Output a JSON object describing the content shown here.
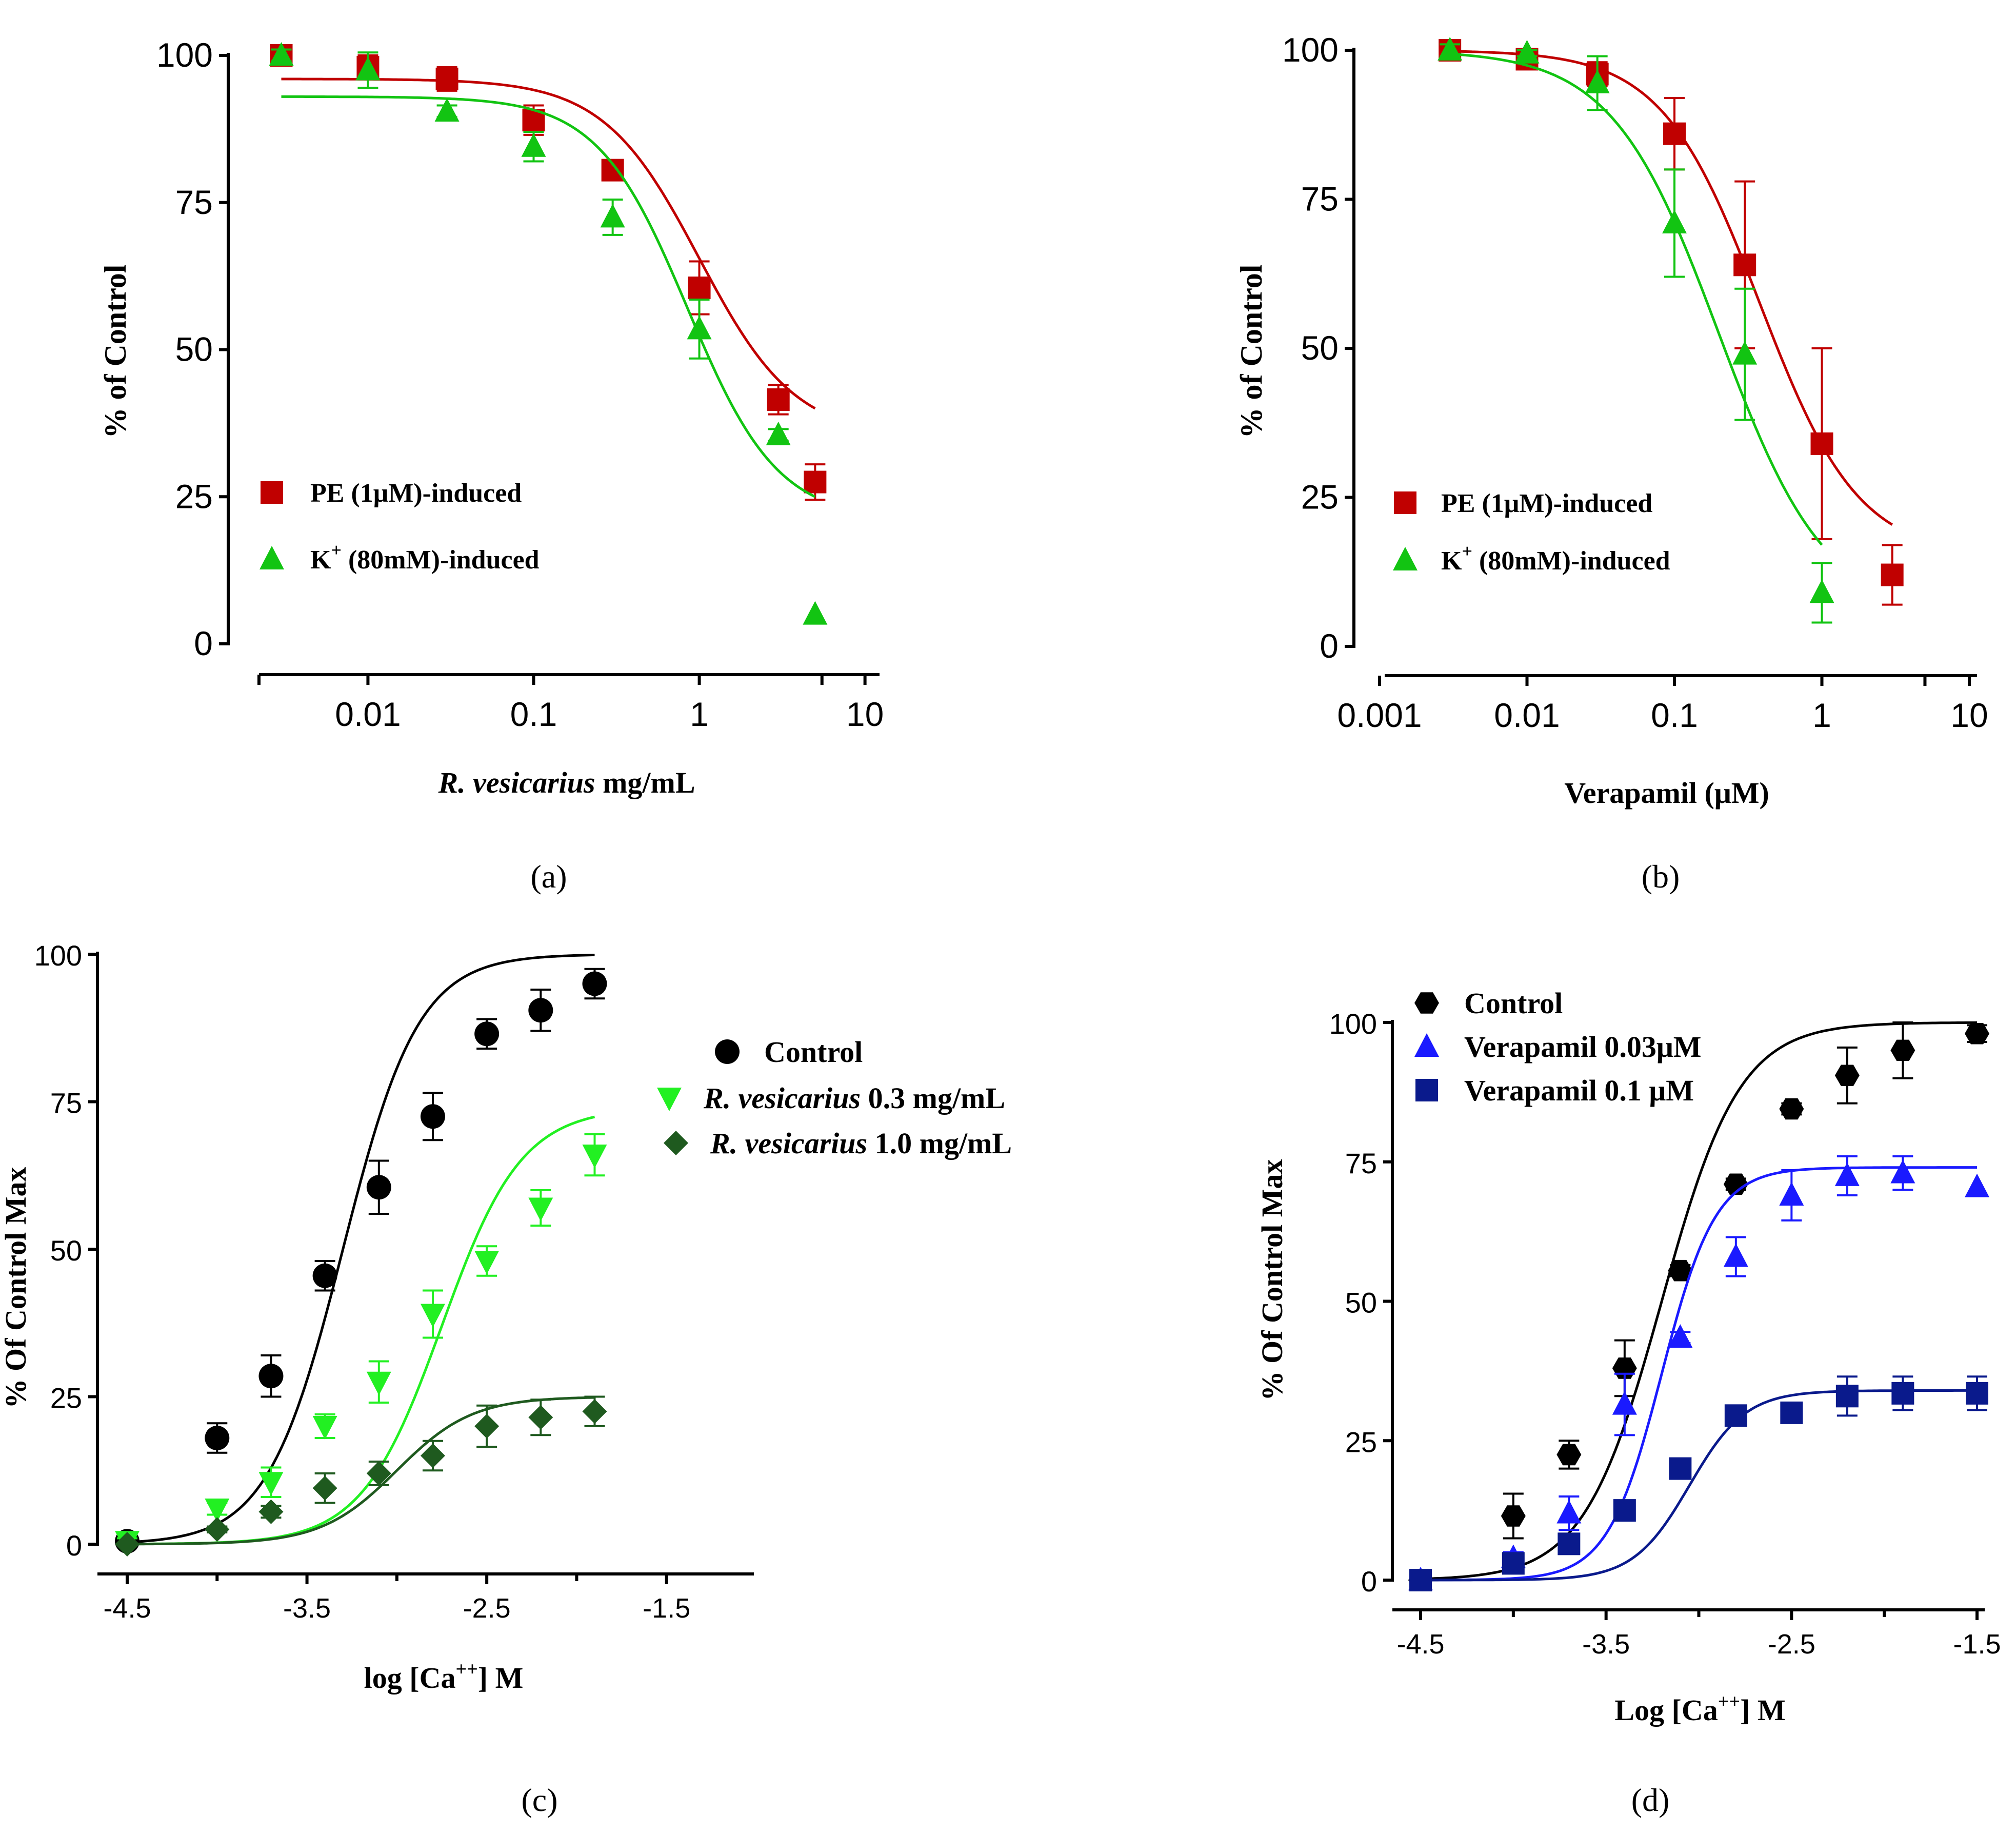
{
  "panels": [
    {
      "caption": "(a)",
      "ylabel": "% of Control",
      "xlabel_italic": "R. vesicarius",
      "xlabel_rest": " mg/mL",
      "xscale": "log",
      "xlim": [
        0.0022,
        11
      ],
      "ylim": [
        0,
        100
      ],
      "xticks": [
        0.01,
        0.1,
        1,
        10
      ],
      "xtick_labels": [
        "0.01",
        "0.1",
        "1",
        "10"
      ],
      "yticks": [
        0,
        25,
        50,
        75,
        100
      ],
      "ytick_labels": [
        "0",
        "25",
        "50",
        "75",
        "100"
      ],
      "legend": [
        {
          "label": "PE (1μM)-induced",
          "series": 0
        },
        {
          "label_pre": "K",
          "label_sup": "+",
          "label_post": " (80mM)-induced",
          "series": 1
        }
      ]
    },
    {
      "caption": "(b)",
      "ylabel": "% of Control",
      "xlabel": "Verapamil (μM)",
      "xscale": "log",
      "xlim": [
        0.001,
        10
      ],
      "ylim": [
        0,
        100
      ],
      "xticks": [
        0.001,
        0.01,
        0.1,
        1,
        10
      ],
      "xtick_labels": [
        "0.001",
        "0.01",
        "0.1",
        "1",
        "10"
      ],
      "yticks": [
        0,
        25,
        50,
        75,
        100
      ],
      "ytick_labels": [
        "0",
        "25",
        "50",
        "75",
        "100"
      ],
      "legend": [
        {
          "label": "PE (1μM)-induced",
          "series": 0
        },
        {
          "label_pre": "K",
          "label_sup": "+",
          "label_post": " (80mM)-induced",
          "series": 1
        }
      ]
    },
    {
      "caption": "(c)",
      "ylabel": "% Of Control Max",
      "xlabel_pre": "log [Ca",
      "xlabel_sup": "++",
      "xlabel_post": "] M",
      "xscale": "linear",
      "xlim": [
        -4.5,
        -1.0
      ],
      "ylim": [
        0,
        100
      ],
      "xticks": [
        -4.5,
        -3.5,
        -2.5,
        -1.5
      ],
      "xtick_labels": [
        "-4.5",
        "-3.5",
        "-2.5",
        "-1.5"
      ],
      "yticks": [
        0,
        25,
        50,
        75,
        100
      ],
      "ytick_labels": [
        "0",
        "25",
        "50",
        "75",
        "100"
      ],
      "legend": [
        {
          "label": "Control",
          "series": 0
        },
        {
          "label_italic": "R. vesicarius",
          "label_rest": " 0.3 mg/mL",
          "series": 1
        },
        {
          "label_italic": "R. vesicarius",
          "label_rest": " 1.0 mg/mL",
          "series": 2
        }
      ]
    },
    {
      "caption": "(d)",
      "ylabel": "% Of Control Max",
      "xlabel_pre": "Log [Ca",
      "xlabel_sup": "++",
      "xlabel_post": "] M",
      "xscale": "linear",
      "xlim": [
        -4.5,
        -1.5
      ],
      "ylim": [
        0,
        100
      ],
      "xticks": [
        -4.5,
        -3.5,
        -2.5,
        -1.5
      ],
      "xtick_labels": [
        "-4.5",
        "-3.5",
        "-2.5",
        "-1.5"
      ],
      "yticks": [
        0,
        25,
        50,
        75,
        100
      ],
      "ytick_labels": [
        "0",
        "25",
        "50",
        "75",
        "100"
      ],
      "legend": [
        {
          "label": "Control",
          "series": 0
        },
        {
          "label": "Verapamil 0.03μM",
          "series": 1
        },
        {
          "label": "Verapamil 0.1 μM",
          "series": 2
        }
      ]
    }
  ],
  "chart_data": [
    {
      "type": "scatter",
      "title": "(a)",
      "xlabel": "R. vesicarius mg/mL",
      "ylabel": "% of Control",
      "xscale": "log",
      "series": [
        {
          "name": "PE (1μM)-induced",
          "color": "#c00000",
          "marker": "square",
          "x": [
            0.003,
            0.01,
            0.03,
            0.1,
            0.3,
            1,
            3,
            5
          ],
          "y": [
            100,
            98,
            96,
            89,
            80.5,
            60.5,
            41.5,
            27.5
          ],
          "err": [
            1,
            2,
            2,
            2.5,
            1.5,
            4.5,
            2.5,
            3
          ],
          "fit": {
            "top": 96,
            "bottom": 35,
            "ec50": 1.0,
            "hill": 1.5
          }
        },
        {
          "name": "K+ (80mM)-induced",
          "color": "#12c412",
          "marker": "triangle-up",
          "x": [
            0.003,
            0.01,
            0.03,
            0.1,
            0.3,
            1,
            3,
            5
          ],
          "y": [
            100,
            97.5,
            90.5,
            84.5,
            72.5,
            53.5,
            35.5,
            5
          ],
          "err": [
            1,
            3,
            1,
            2.5,
            3,
            5,
            1,
            0
          ],
          "fit": {
            "top": 93,
            "bottom": 21,
            "ec50": 0.85,
            "hill": 1.6
          }
        }
      ]
    },
    {
      "type": "scatter",
      "title": "(b)",
      "xlabel": "Verapamil (μM)",
      "ylabel": "% of Control",
      "xscale": "log",
      "series": [
        {
          "name": "PE (1μM)-induced",
          "color": "#c00000",
          "marker": "square",
          "x": [
            0.003,
            0.01,
            0.03,
            0.1,
            0.3,
            1,
            3
          ],
          "y": [
            100,
            98.5,
            96,
            86,
            64,
            34,
            12
          ],
          "err": [
            1,
            1,
            2,
            6,
            14,
            16,
            5
          ],
          "fit": {
            "top": 100,
            "bottom": 15,
            "ec50": 0.38,
            "hill": 1.3
          }
        },
        {
          "name": "K+ (80mM)-induced",
          "color": "#12c412",
          "marker": "triangle-up",
          "x": [
            0.003,
            0.01,
            0.03,
            0.1,
            0.3,
            1
          ],
          "y": [
            100,
            99.5,
            94.5,
            71,
            49,
            9
          ],
          "err": [
            1,
            0.5,
            4.5,
            9,
            11,
            5
          ],
          "fit": {
            "top": 100,
            "bottom": 5,
            "ec50": 0.2,
            "hill": 1.2
          }
        }
      ]
    },
    {
      "type": "scatter",
      "title": "(c)",
      "xlabel": "log [Ca++] M",
      "ylabel": "% Of Control Max",
      "series": [
        {
          "name": "Control",
          "color": "#000000",
          "marker": "circle",
          "x": [
            -4.5,
            -4.0,
            -3.7,
            -3.4,
            -3.1,
            -2.8,
            -2.5,
            -2.2,
            -1.9
          ],
          "y": [
            0.5,
            18,
            28.5,
            45.5,
            60.5,
            72.5,
            86.5,
            90.5,
            95
          ],
          "err": [
            0.5,
            2.5,
            3.5,
            2.5,
            4.5,
            4,
            2.5,
            3.5,
            2.5
          ],
          "fit": {
            "bottom": 0,
            "top": 100,
            "ec50": -3.3,
            "hill": 0.9
          }
        },
        {
          "name": "R. vesicarius 0.3 mg/mL",
          "color": "#22f022",
          "marker": "triangle-down",
          "x": [
            -4.5,
            -4.0,
            -3.7,
            -3.4,
            -3.1,
            -2.8,
            -2.5,
            -2.2,
            -1.9
          ],
          "y": [
            0.5,
            6,
            10.5,
            20,
            27.5,
            39,
            48,
            57,
            66
          ],
          "err": [
            0.5,
            1,
            2.5,
            2,
            3.5,
            4,
            2.5,
            3,
            3.5
          ],
          "fit": {
            "bottom": 0,
            "top": 74,
            "ec50": -2.75,
            "hill": 0.85
          }
        },
        {
          "name": "R. vesicarius 1.0 mg/mL",
          "color": "#1f5a1f",
          "marker": "diamond",
          "x": [
            -4.5,
            -4.0,
            -3.7,
            -3.4,
            -3.1,
            -2.8,
            -2.5,
            -2.2,
            -1.9
          ],
          "y": [
            0,
            2.5,
            5.5,
            9.5,
            12,
            15,
            20,
            21.5,
            22.5
          ],
          "err": [
            0,
            0.5,
            1,
            2.5,
            2,
            2.5,
            3.5,
            3,
            2.5
          ],
          "fit": {
            "bottom": 0,
            "top": 25,
            "ec50": -3.0,
            "hill": 0.9
          }
        }
      ]
    },
    {
      "type": "scatter",
      "title": "(d)",
      "xlabel": "Log [Ca++] M",
      "ylabel": "% Of Control Max",
      "series": [
        {
          "name": "Control",
          "color": "#000000",
          "marker": "hexagon",
          "x": [
            -4.5,
            -4.0,
            -3.7,
            -3.4,
            -3.1,
            -2.8,
            -2.5,
            -2.2,
            -1.9,
            -1.5
          ],
          "y": [
            0,
            11.5,
            22.5,
            38,
            55.5,
            71,
            84.5,
            90.5,
            95,
            98
          ],
          "err": [
            0.5,
            4,
            2.5,
            5,
            1,
            1,
            1,
            5,
            5,
            1.5
          ],
          "fit": {
            "bottom": 0,
            "top": 100,
            "ec50": -3.2,
            "hill": 0.9
          }
        },
        {
          "name": "Verapamil 0.03μM",
          "color": "#1a1aff",
          "marker": "triangle-up",
          "x": [
            -4.5,
            -4.0,
            -3.7,
            -3.4,
            -3.1,
            -2.8,
            -2.5,
            -2.2,
            -1.9,
            -1.5
          ],
          "y": [
            0,
            4,
            12,
            31.5,
            43.5,
            58,
            69,
            72.5,
            73,
            70.5
          ],
          "err": [
            0.5,
            1,
            3,
            5.5,
            1,
            3.5,
            4.5,
            3.5,
            3,
            0
          ],
          "fit": {
            "bottom": 0,
            "top": 74,
            "ec50": -3.2,
            "hill": 1.3
          }
        },
        {
          "name": "Verapamil 0.1 μM",
          "color": "#0a1a8c",
          "marker": "square",
          "x": [
            -4.5,
            -4.0,
            -3.7,
            -3.4,
            -3.1,
            -2.8,
            -2.5,
            -2.2,
            -1.9,
            -1.5
          ],
          "y": [
            0,
            3,
            6.5,
            12.5,
            20,
            29.5,
            30,
            33,
            33.5,
            33.5
          ],
          "err": [
            0.5,
            0.5,
            0.5,
            0.5,
            1.5,
            0.5,
            1.5,
            3.5,
            3,
            3
          ],
          "fit": {
            "bottom": 0,
            "top": 34,
            "ec50": -3.05,
            "hill": 1.25
          }
        }
      ]
    }
  ]
}
